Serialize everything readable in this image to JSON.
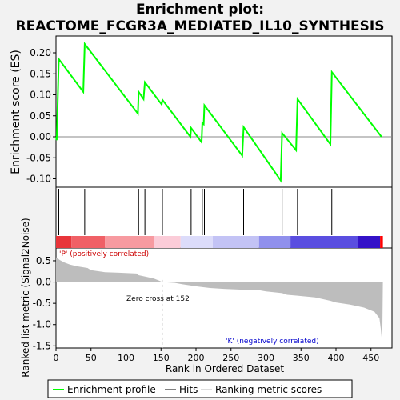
{
  "title_line1": "Enrichment plot:",
  "title_line2": "REACTOME_FCGR3A_MEDIATED_IL10_SYNTHESIS",
  "chart_data": [
    {
      "type": "line",
      "name": "enrichment-profile",
      "ylabel": "Enrichment score (ES)",
      "xlim": [
        0,
        480
      ],
      "ylim": [
        -0.12,
        0.24
      ],
      "yticks": [
        "-0.10",
        "-0.05",
        "0.00",
        "0.05",
        "0.10",
        "0.15",
        "0.20"
      ],
      "grid": false,
      "points": [
        [
          0,
          0.0
        ],
        [
          1,
          -0.008
        ],
        [
          4,
          0.185
        ],
        [
          39,
          0.107
        ],
        [
          41,
          0.221
        ],
        [
          117,
          0.055
        ],
        [
          118,
          0.107
        ],
        [
          125,
          0.09
        ],
        [
          127,
          0.13
        ],
        [
          151,
          0.077
        ],
        [
          152,
          0.088
        ],
        [
          192,
          0.0
        ],
        [
          193,
          0.021
        ],
        [
          208,
          -0.013
        ],
        [
          209,
          0.033
        ],
        [
          211,
          0.03
        ],
        [
          212,
          0.075
        ],
        [
          266,
          -0.045
        ],
        [
          268,
          0.023
        ],
        [
          321,
          -0.104
        ],
        [
          323,
          0.009
        ],
        [
          343,
          -0.032
        ],
        [
          345,
          0.09
        ],
        [
          392,
          -0.018
        ],
        [
          394,
          0.154
        ],
        [
          465,
          0.0
        ]
      ]
    },
    {
      "type": "hits",
      "name": "hits",
      "positions": [
        4,
        41,
        118,
        127,
        152,
        193,
        209,
        212,
        268,
        323,
        345,
        394
      ]
    },
    {
      "type": "area",
      "name": "ranked-list-metric",
      "xlabel": "Rank in Ordered Dataset",
      "ylabel": "Ranked list metric (Signal2Noise)",
      "xlim": [
        0,
        480
      ],
      "ylim": [
        -1.55,
        0.8
      ],
      "xticks": [
        "0",
        "50",
        "100",
        "150",
        "200",
        "250",
        "300",
        "350",
        "400",
        "450"
      ],
      "yticks": [
        "-1.5",
        "-1.0",
        "-0.5",
        "0.0",
        "0.5"
      ],
      "points": [
        [
          0,
          0.58
        ],
        [
          5,
          0.52
        ],
        [
          12,
          0.46
        ],
        [
          20,
          0.41
        ],
        [
          30,
          0.37
        ],
        [
          45,
          0.33
        ],
        [
          50,
          0.28
        ],
        [
          70,
          0.23
        ],
        [
          90,
          0.22
        ],
        [
          115,
          0.2
        ],
        [
          118,
          0.16
        ],
        [
          130,
          0.12
        ],
        [
          140,
          0.08
        ],
        [
          148,
          0.03
        ],
        [
          152,
          0.0
        ],
        [
          170,
          -0.02
        ],
        [
          180,
          -0.05
        ],
        [
          200,
          -0.1
        ],
        [
          220,
          -0.14
        ],
        [
          240,
          -0.16
        ],
        [
          266,
          -0.18
        ],
        [
          290,
          -0.19
        ],
        [
          300,
          -0.22
        ],
        [
          323,
          -0.26
        ],
        [
          330,
          -0.3
        ],
        [
          345,
          -0.32
        ],
        [
          370,
          -0.36
        ],
        [
          392,
          -0.44
        ],
        [
          400,
          -0.48
        ],
        [
          420,
          -0.53
        ],
        [
          440,
          -0.6
        ],
        [
          455,
          -0.7
        ],
        [
          462,
          -0.85
        ],
        [
          464,
          -1.1
        ],
        [
          466,
          -1.45
        ],
        [
          467,
          0.0
        ]
      ],
      "annotations": {
        "positive": "'P' (positively correlated)",
        "negative": "'K' (negatively correlated)",
        "zero_cross": "Zero cross at 152"
      }
    }
  ],
  "legend": [
    {
      "label": "Enrichment profile",
      "color": "#00ff00"
    },
    {
      "label": "Hits",
      "color": "#000000"
    },
    {
      "label": "Ranking metric scores",
      "color": "#bbbbbb"
    }
  ],
  "colors": {
    "profile": "#00ff00",
    "metric_fill": "#bdbdbd",
    "positive_text": "#cc0000",
    "negative_text": "#0000cc",
    "zero_line": "#888888"
  },
  "heatmap_bands": [
    {
      "from": 0,
      "to": 22,
      "color": "#e8353a"
    },
    {
      "from": 22,
      "to": 70,
      "color": "#f06066"
    },
    {
      "from": 70,
      "to": 140,
      "color": "#f79aa0"
    },
    {
      "from": 140,
      "to": 178,
      "color": "#fbccd8"
    },
    {
      "from": 178,
      "to": 224,
      "color": "#dcdcfa"
    },
    {
      "from": 224,
      "to": 290,
      "color": "#c3c3f5"
    },
    {
      "from": 290,
      "to": 335,
      "color": "#9090ec"
    },
    {
      "from": 335,
      "to": 432,
      "color": "#5a4ee0"
    },
    {
      "from": 432,
      "to": 463,
      "color": "#3412c8"
    },
    {
      "from": 463,
      "to": 467,
      "color": "#ff0000"
    }
  ]
}
